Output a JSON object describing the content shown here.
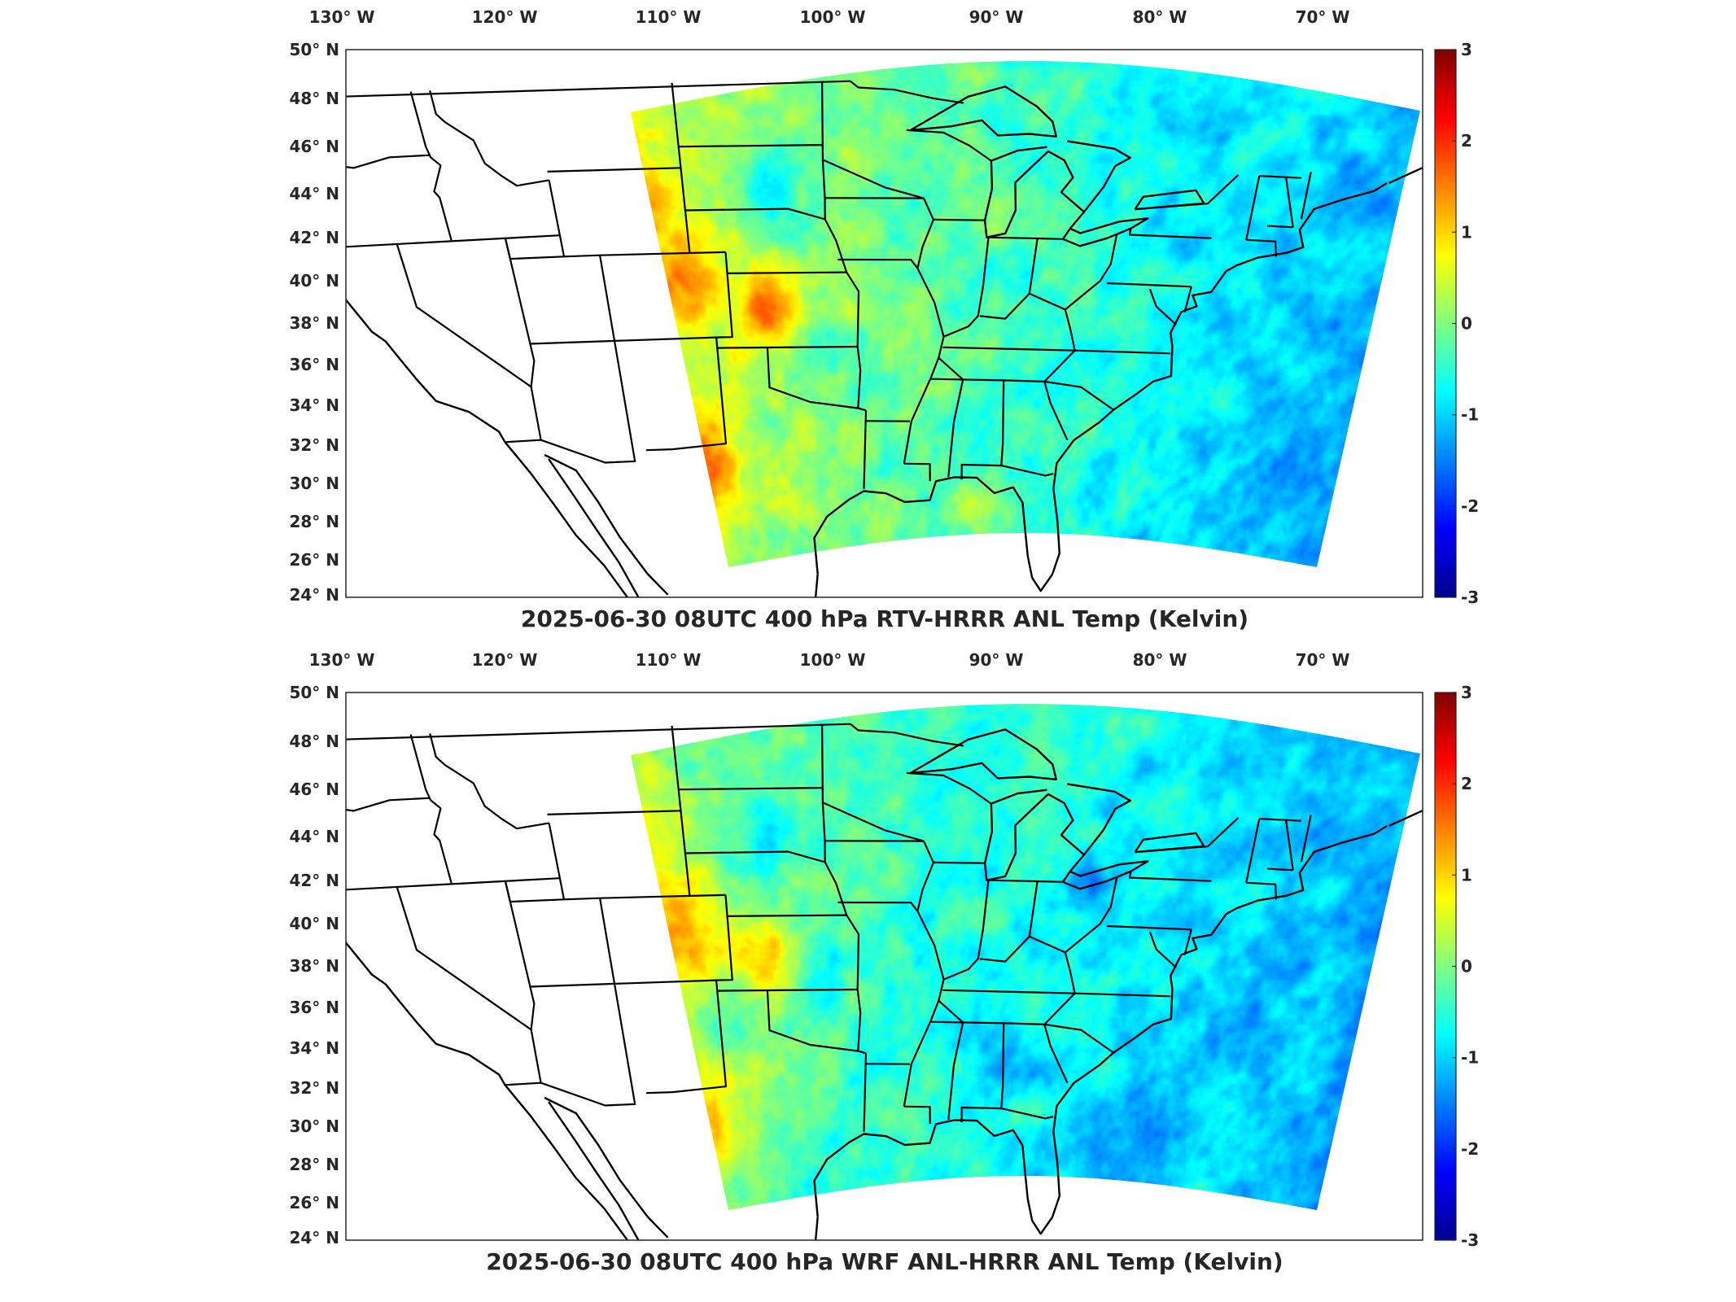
{
  "figure": {
    "panels": [
      {
        "title": "2025-06-30 08UTC 400 hPa RTV-HRRR ANL Temp (Kelvin)",
        "variant": "rtv"
      },
      {
        "title": "2025-06-30 08UTC 400 hPa WRF ANL-HRRR ANL Temp (Kelvin)",
        "variant": "wrf"
      }
    ],
    "lon_labels": [
      "130° W",
      "120° W",
      "110° W",
      "100° W",
      "90° W",
      "80° W",
      "70° W"
    ],
    "lat_labels": [
      "50° N",
      "48° N",
      "46° N",
      "44° N",
      "42° N",
      "40° N",
      "38° N",
      "36° N",
      "34° N",
      "32° N",
      "30° N",
      "28° N",
      "26° N",
      "24° N"
    ],
    "lon_values": [
      -130,
      -120,
      -110,
      -100,
      -90,
      -80,
      -70
    ],
    "lat_values": [
      50,
      48,
      46,
      44,
      42,
      40,
      38,
      36,
      34,
      32,
      30,
      28,
      26,
      24
    ],
    "colorbar": {
      "colormap": "jet",
      "range": [
        -3,
        3
      ],
      "tick_labels": [
        "3",
        "2",
        "1",
        "0",
        "-1",
        "-2",
        "-3"
      ],
      "tick_values": [
        3,
        2,
        1,
        0,
        -1,
        -2,
        -3
      ]
    },
    "colors": {
      "jet_stops": [
        "#00008f",
        "#0000ff",
        "#0080ff",
        "#00ffff",
        "#80ff80",
        "#ffff00",
        "#ff8000",
        "#ff0000",
        "#800000"
      ]
    }
  }
}
